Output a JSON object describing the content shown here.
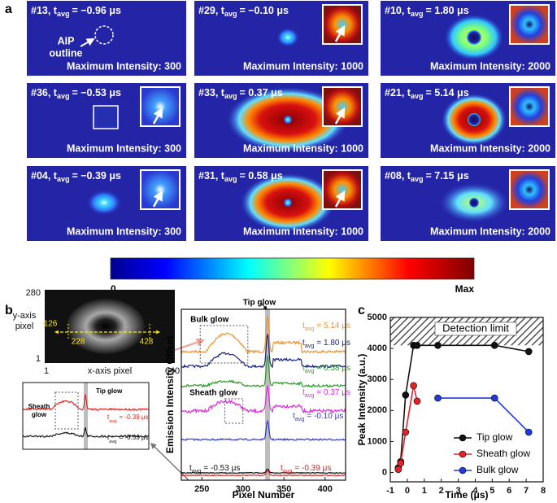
{
  "panel_a": {
    "letter": "a",
    "images": [
      {
        "prefix": "#13, t",
        "sub": "avg",
        "time": "= −0.96 μs",
        "intensity": "Maximum Intensity: 300"
      },
      {
        "prefix": "#29, t",
        "sub": "avg",
        "time": "= −0.10 μs",
        "intensity": "Maximum Intensity: 1000"
      },
      {
        "prefix": "#10, t",
        "sub": "avg",
        "time": "= 1.80 μs",
        "intensity": "Maximum Intensity: 2000"
      },
      {
        "prefix": "#36, t",
        "sub": "avg",
        "time": "= −0.53 μs",
        "intensity": "Maximum Intensity: 300"
      },
      {
        "prefix": "#33, t",
        "sub": "avg",
        "time": "= 0.37 μs",
        "intensity": "Maximum Intensity: 1000"
      },
      {
        "prefix": "#21, t",
        "sub": "avg",
        "time": "= 5.14 μs",
        "intensity": "Maximum Intensity: 2000"
      },
      {
        "prefix": "#04, t",
        "sub": "avg",
        "time": "= −0.39 μs",
        "intensity": "Maximum Intensity: 300"
      },
      {
        "prefix": "#31, t",
        "sub": "avg",
        "time": "= 0.58 μs",
        "intensity": "Maximum Intensity: 1000"
      },
      {
        "prefix": "#08, t",
        "sub": "avg",
        "time": "= 7.15 μs",
        "intensity": "Maximum Intensity: 2000"
      }
    ],
    "annotation": [
      "AIP",
      "outline"
    ],
    "colorbar": {
      "min": "0",
      "max": "Max"
    }
  },
  "panel_b": {
    "letter": "b",
    "inset": {
      "y_top": "280",
      "y_label": [
        "y-axis",
        "pixel"
      ],
      "y_bottom": "1",
      "x_left": "1",
      "x_label": "x-axis pixel",
      "x_right": "640",
      "markers": [
        "126",
        "228",
        "428"
      ]
    },
    "plot": {
      "ylabel": "Emission Intensity Offset",
      "xlabel": "Pixel Number",
      "xlim": [
        225,
        425
      ],
      "xticks": [
        250,
        300,
        350,
        400
      ],
      "annotations": {
        "tip": "Tip glow",
        "bulk": "Bulk glow",
        "sheath": "Sheath glow"
      },
      "curves": [
        {
          "color": "#f0922f",
          "prefix": "t",
          "sub": "avg",
          "time": "= 5.14 μs"
        },
        {
          "color": "#1a237e",
          "prefix": "t",
          "sub": "avg",
          "time": "= 1.80 μs"
        },
        {
          "color": "#2e9a2e",
          "prefix": "t",
          "sub": "avg",
          "time": "= 0.58 μs"
        },
        {
          "color": "#e02ce0",
          "prefix": "t",
          "sub": "avg",
          "time": "= 0.37 μs"
        },
        {
          "color": "#2a3ad8",
          "prefix": "t",
          "sub": "avg",
          "time": "= -0.10 μs"
        },
        {
          "color": "#111111",
          "prefix": "t",
          "sub": "avg",
          "time": "= -0.53 μs"
        },
        {
          "color": "#e02020",
          "prefix": "t",
          "sub": "avg",
          "time": "= -0.39 μs"
        }
      ]
    },
    "zoom": {
      "tip": "Tip glow",
      "sheath": [
        "Sheath",
        "glow"
      ],
      "curves": [
        {
          "color": "#e02020",
          "prefix": "t",
          "sub": "avg",
          "time": "= -0.39 μs"
        },
        {
          "color": "#111111",
          "prefix": "t",
          "sub": "avg",
          "time": "= -0.53 μs"
        }
      ]
    }
  },
  "chart_data": {
    "type": "line",
    "letter": "c",
    "xlabel": "Time (μs)",
    "ylabel": "Peak Intensity (a.u.)",
    "annotation": "Detection limit",
    "detection_limit": 4100,
    "xlim": [
      -1,
      8
    ],
    "ylim": [
      -300,
      5000
    ],
    "xticks": [
      -1,
      0,
      1,
      2,
      3,
      4,
      5,
      6,
      7,
      8
    ],
    "yticks": [
      0,
      1000,
      2000,
      3000,
      4000,
      5000
    ],
    "legend": "lower right",
    "series": [
      {
        "name": "Tip glow",
        "color": "#111111",
        "x": [
          -0.53,
          -0.39,
          -0.1,
          0.37,
          0.58,
          1.8,
          5.14,
          7.15
        ],
        "values": [
          150,
          350,
          2500,
          4100,
          4100,
          4100,
          4100,
          3900
        ]
      },
      {
        "name": "Sheath glow",
        "color": "#e8202a",
        "x": [
          -0.53,
          -0.39,
          -0.1,
          0.37,
          0.58
        ],
        "values": [
          100,
          300,
          1300,
          2800,
          2300
        ]
      },
      {
        "name": "Bulk glow",
        "color": "#1f3ae0",
        "x": [
          1.8,
          5.14,
          7.15
        ],
        "values": [
          2400,
          2400,
          1300
        ]
      }
    ]
  }
}
